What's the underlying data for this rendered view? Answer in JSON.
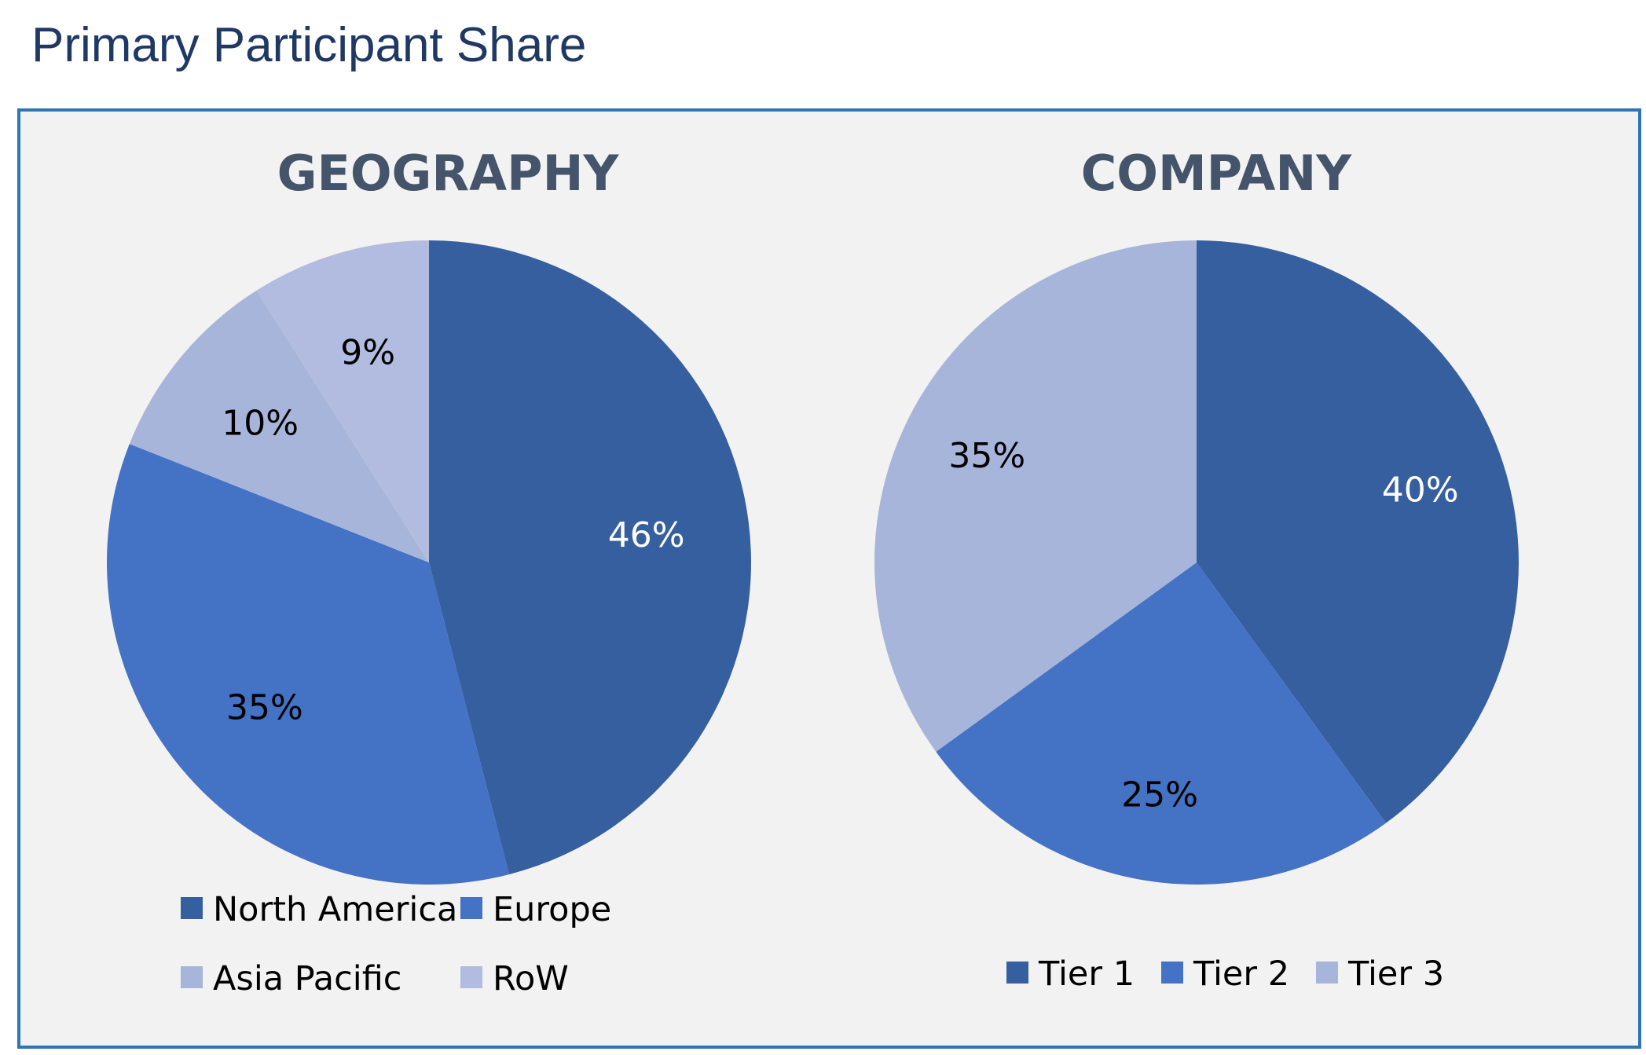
{
  "page": {
    "title": "Primary Participant Share"
  },
  "chart_data": [
    {
      "type": "pie",
      "title": "GEOGRAPHY",
      "categories": [
        "North America",
        "Europe",
        "Asia Pacific",
        "RoW"
      ],
      "values": [
        46,
        35,
        10,
        9
      ],
      "data_labels": [
        "46%",
        "35%",
        "10%",
        "9%"
      ],
      "colors": [
        "#365fa0",
        "#4472c4",
        "#a7b5da",
        "#b1bce0"
      ],
      "label_colors": [
        "#ffffff",
        "#000000",
        "#000000",
        "#000000"
      ],
      "legend_placement": "bottom"
    },
    {
      "type": "pie",
      "title": "COMPANY",
      "categories": [
        "Tier 1",
        "Tier 2",
        "Tier 3"
      ],
      "values": [
        40,
        25,
        35
      ],
      "data_labels": [
        "40%",
        "25%",
        "35%"
      ],
      "colors": [
        "#365fa0",
        "#4472c4",
        "#a7b5da"
      ],
      "label_colors": [
        "#ffffff",
        "#000000",
        "#000000"
      ],
      "legend_placement": "bottom"
    }
  ]
}
